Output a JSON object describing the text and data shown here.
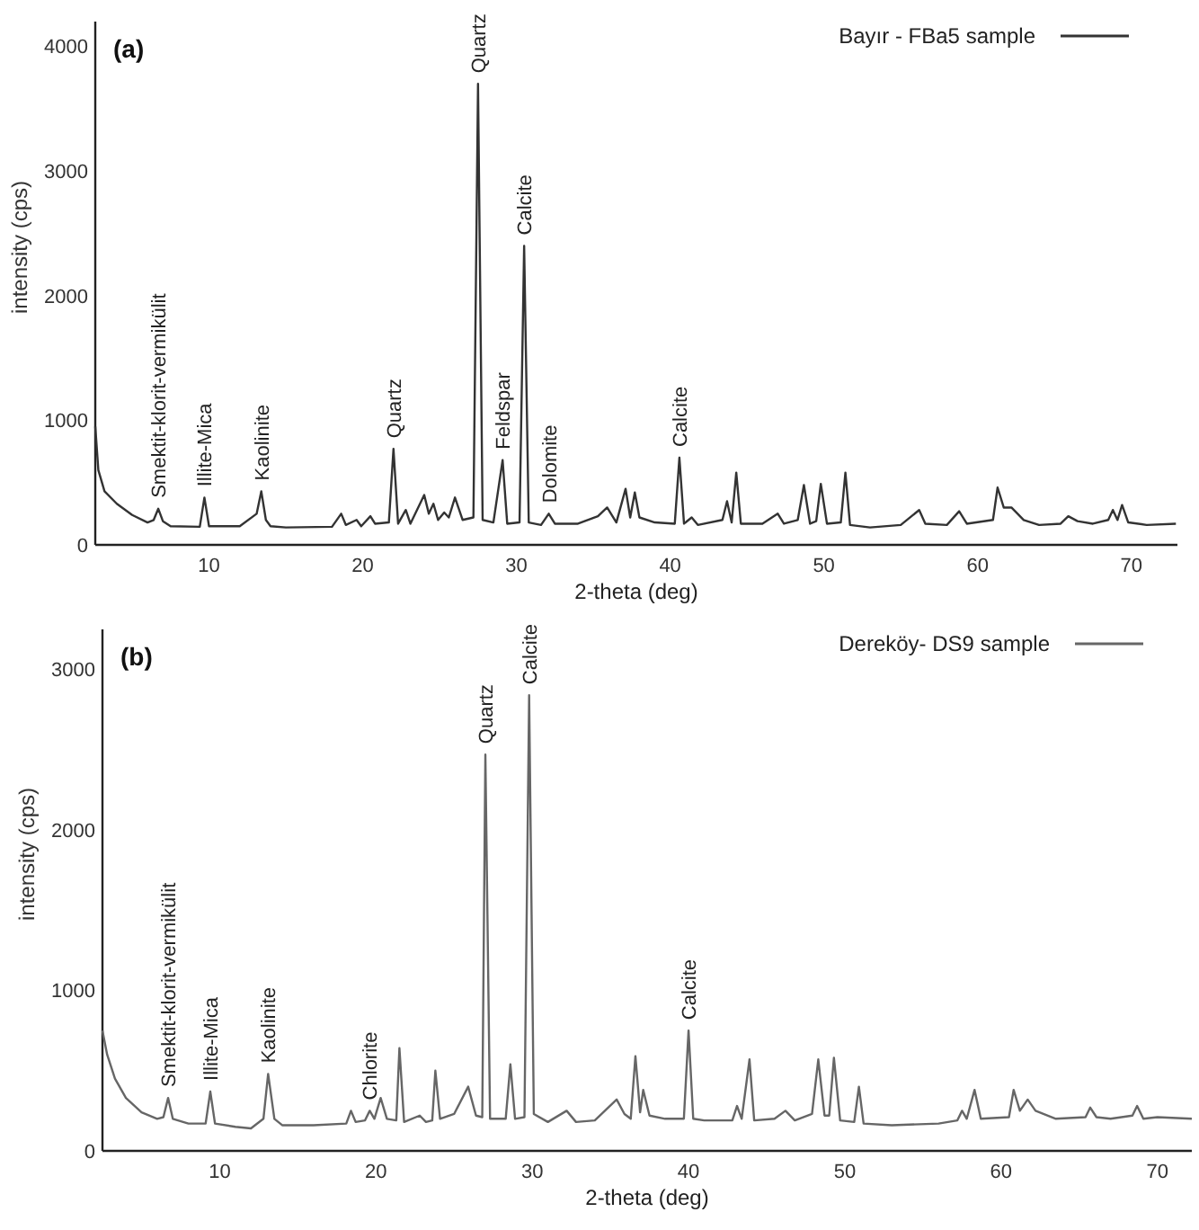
{
  "chart_data": [
    {
      "type": "line",
      "title": "(a)",
      "xlabel": "2-theta (deg)",
      "ylabel": "intensity (cps)",
      "xlim": [
        2.6,
        73
      ],
      "ylim": [
        0,
        4200
      ],
      "xticks": [
        10,
        20,
        30,
        40,
        50,
        60,
        70
      ],
      "yticks": [
        0,
        1000,
        2000,
        3000,
        4000
      ],
      "legend": "top right",
      "series": [
        {
          "name": "Bayır - FBa5 sample",
          "color": "#333333",
          "x": [
            2.6,
            2.8,
            3.2,
            4,
            5,
            6,
            6.4,
            6.7,
            7.0,
            7.5,
            9.4,
            9.7,
            10.0,
            12,
            13.1,
            13.4,
            13.7,
            14,
            15,
            18,
            18.6,
            18.9,
            19.6,
            19.9,
            20.5,
            20.8,
            21.7,
            22.0,
            22.3,
            22.8,
            23.1,
            24.0,
            24.3,
            24.6,
            24.9,
            25.3,
            25.6,
            26.0,
            26.5,
            27.2,
            27.5,
            27.8,
            28.5,
            29.1,
            29.4,
            30.2,
            30.5,
            30.8,
            31.6,
            32.1,
            32.5,
            34,
            35.3,
            35.9,
            36.5,
            37.1,
            37.4,
            37.7,
            38.0,
            39,
            40.3,
            40.6,
            40.9,
            41.4,
            41.8,
            43.4,
            43.7,
            44.0,
            44.3,
            44.6,
            46,
            47.0,
            47.4,
            48.3,
            48.7,
            49.1,
            49.5,
            49.8,
            50.2,
            51.1,
            51.4,
            51.7,
            53,
            55,
            56.2,
            56.6,
            58,
            58.8,
            59.3,
            61,
            61.3,
            61.7,
            62.2,
            63,
            64,
            65.4,
            65.9,
            66.5,
            67.5,
            68.5,
            68.8,
            69.1,
            69.4,
            69.8,
            71,
            72.9
          ],
          "values": [
            950,
            600,
            430,
            330,
            240,
            180,
            200,
            290,
            190,
            150,
            145,
            380,
            150,
            150,
            250,
            430,
            200,
            150,
            140,
            145,
            250,
            160,
            200,
            150,
            230,
            170,
            180,
            770,
            170,
            280,
            170,
            400,
            250,
            330,
            200,
            260,
            220,
            380,
            200,
            220,
            3700,
            200,
            180,
            680,
            170,
            180,
            2400,
            180,
            160,
            250,
            170,
            170,
            230,
            300,
            180,
            450,
            220,
            420,
            220,
            180,
            170,
            700,
            170,
            220,
            160,
            200,
            350,
            180,
            580,
            170,
            170,
            250,
            170,
            200,
            480,
            170,
            190,
            490,
            170,
            180,
            580,
            160,
            140,
            160,
            280,
            170,
            160,
            270,
            170,
            200,
            460,
            300,
            300,
            200,
            160,
            170,
            230,
            190,
            170,
            200,
            280,
            200,
            320,
            180,
            160,
            170
          ]
        }
      ],
      "annotations": [
        {
          "text": "Smektit-klorit-vermikülit",
          "x": 6.7,
          "y": 290
        },
        {
          "text": "Illite-Mica",
          "x": 9.7,
          "y": 380
        },
        {
          "text": "Kaolinite",
          "x": 13.4,
          "y": 430
        },
        {
          "text": "Quartz",
          "x": 22.0,
          "y": 770
        },
        {
          "text": "Quartz",
          "x": 27.5,
          "y": 3700
        },
        {
          "text": "Feldspar",
          "x": 29.1,
          "y": 680
        },
        {
          "text": "Calcite",
          "x": 30.5,
          "y": 2400
        },
        {
          "text": "Dolomite",
          "x": 32.1,
          "y": 250
        },
        {
          "text": "Calcite",
          "x": 40.6,
          "y": 700
        }
      ]
    },
    {
      "type": "line",
      "title": "(b)",
      "xlabel": "2-theta (deg)",
      "ylabel": "intensity (cps)",
      "xlim": [
        2.5,
        72.2
      ],
      "ylim": [
        0,
        3250
      ],
      "xticks": [
        10,
        20,
        30,
        40,
        50,
        60,
        70
      ],
      "yticks": [
        0,
        1000,
        2000,
        3000
      ],
      "legend": "top right",
      "series": [
        {
          "name": "Dereköy- DS9 sample",
          "color": "#666666",
          "x": [
            2.5,
            2.8,
            3.3,
            4,
            5,
            6,
            6.4,
            6.7,
            7.0,
            8,
            9.1,
            9.4,
            9.7,
            11,
            12,
            12.8,
            13.1,
            13.5,
            14,
            16,
            18.1,
            18.4,
            18.7,
            19.3,
            19.6,
            19.9,
            20.3,
            20.7,
            21.3,
            21.5,
            21.8,
            22.8,
            23.2,
            23.6,
            23.8,
            24.1,
            25,
            25.9,
            26.4,
            26.8,
            27.0,
            27.3,
            28.3,
            28.6,
            28.9,
            29.5,
            29.8,
            30.1,
            31,
            32.2,
            32.8,
            34,
            35.4,
            35.9,
            36.3,
            36.6,
            36.9,
            37.1,
            37.5,
            38.5,
            39.7,
            40.0,
            40.3,
            41,
            42.8,
            43.1,
            43.4,
            43.9,
            44.2,
            45.5,
            46.2,
            46.8,
            47.9,
            48.3,
            48.7,
            49.0,
            49.3,
            49.7,
            50.6,
            50.9,
            51.2,
            53,
            56,
            57.2,
            57.5,
            57.8,
            58.3,
            58.7,
            60.5,
            60.8,
            61.2,
            61.7,
            62.2,
            63.5,
            65.4,
            65.7,
            66.1,
            67,
            68.4,
            68.7,
            69.1,
            70,
            72.2
          ],
          "values": [
            750,
            600,
            450,
            330,
            240,
            200,
            210,
            330,
            200,
            170,
            170,
            370,
            170,
            150,
            140,
            200,
            480,
            200,
            160,
            160,
            170,
            250,
            180,
            190,
            250,
            200,
            330,
            200,
            190,
            640,
            180,
            220,
            180,
            190,
            500,
            200,
            230,
            400,
            220,
            210,
            2470,
            200,
            200,
            540,
            200,
            210,
            2840,
            230,
            180,
            250,
            180,
            190,
            320,
            230,
            200,
            590,
            240,
            380,
            220,
            200,
            200,
            750,
            200,
            190,
            190,
            280,
            200,
            570,
            190,
            200,
            250,
            190,
            230,
            570,
            220,
            220,
            580,
            190,
            180,
            400,
            170,
            160,
            170,
            190,
            250,
            200,
            380,
            200,
            210,
            380,
            250,
            320,
            250,
            200,
            210,
            270,
            210,
            200,
            220,
            280,
            200,
            210,
            200
          ]
        }
      ],
      "annotations": [
        {
          "text": "Smektit-klorit-vermikülit",
          "x": 6.7,
          "y": 330
        },
        {
          "text": "Illite-Mica",
          "x": 9.4,
          "y": 370
        },
        {
          "text": "Kaolinite",
          "x": 13.1,
          "y": 480
        },
        {
          "text": "Chlorite",
          "x": 19.6,
          "y": 250
        },
        {
          "text": "Quartz",
          "x": 27.0,
          "y": 2470
        },
        {
          "text": "Calcite",
          "x": 29.8,
          "y": 2840
        },
        {
          "text": "Calcite",
          "x": 40.0,
          "y": 750
        }
      ]
    }
  ]
}
